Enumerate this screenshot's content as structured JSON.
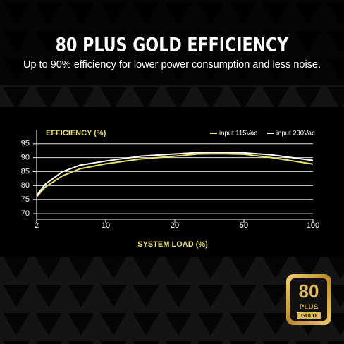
{
  "chart_data": {
    "type": "line",
    "title": "80 PLUS GOLD EFFICIENCY",
    "subtitle": "Up to 90% efficiency for lower power consumption and less noise.",
    "y_label": "EFFICIENCY (%)",
    "x_label": "SYSTEM LOAD (%)",
    "x": [
      2,
      3,
      5,
      7,
      10,
      15,
      20,
      30,
      40,
      50,
      70,
      100
    ],
    "series": [
      {
        "name": "input 115Vac",
        "color": "#e8e06a",
        "values": [
          76,
          79.5,
          83.5,
          86,
          87.8,
          89.5,
          90.5,
          91.3,
          91.4,
          91.2,
          90,
          87.7
        ]
      },
      {
        "name": "input 230Vac",
        "color": "#ffffff",
        "values": [
          76.5,
          80.5,
          85,
          87.3,
          88.8,
          90.5,
          91.3,
          91.8,
          91.9,
          91.7,
          91,
          89
        ]
      }
    ],
    "xlim": [
      2,
      100
    ],
    "xticks": [
      2,
      10,
      20,
      50,
      100
    ],
    "ylim": [
      70,
      100
    ],
    "yticks": [
      70,
      75,
      80,
      85,
      90,
      95
    ],
    "grid": true
  },
  "badge": {
    "number": "80",
    "plus": "PLUS",
    "grade": "GOLD"
  }
}
